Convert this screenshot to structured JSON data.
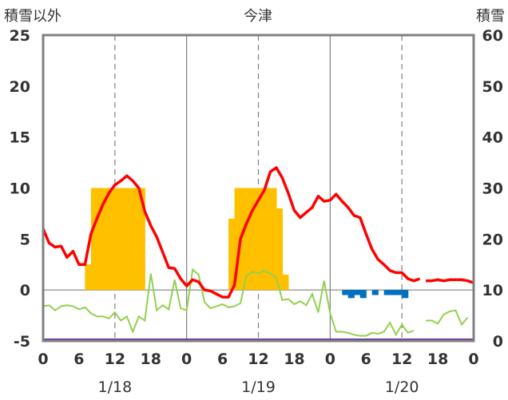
{
  "chart_data": {
    "type": "bar+line",
    "title": "今津",
    "left_axis_label": "積雪以外",
    "right_axis_label": "積雪",
    "y_left": {
      "range": [
        -5,
        25
      ],
      "ticks": [
        "-5",
        "0",
        "5",
        "10",
        "15",
        "20",
        "25"
      ]
    },
    "y_right": {
      "range": [
        0,
        60
      ],
      "ticks": [
        "0",
        "10",
        "20",
        "30",
        "40",
        "50",
        "60"
      ]
    },
    "x_range_hours": [
      0,
      72
    ],
    "x_tick_labels": [
      "0",
      "6",
      "12",
      "18",
      "0",
      "6",
      "12",
      "18",
      "0",
      "6",
      "12",
      "18",
      "0"
    ],
    "date_labels": [
      "1/18",
      "1/19",
      "1/20"
    ],
    "grid": {
      "vertical_dashed_at_hours": [
        12,
        36,
        60
      ],
      "vertical_solid_at_hours": [
        24,
        48
      ]
    },
    "colors": {
      "snow_depth": "#FFC000",
      "temperature": "#FF0000",
      "wind": "#92D050",
      "precipitation": "#0070C0",
      "baseline": "#7030A0",
      "axis": "#808080"
    },
    "snow_depth": [
      {
        "h": 7.5,
        "v": 15.0
      },
      {
        "h": 8.5,
        "v": 30.0
      },
      {
        "h": 9.5,
        "v": 30.0
      },
      {
        "h": 10.5,
        "v": 30.0
      },
      {
        "h": 11.5,
        "v": 30.0
      },
      {
        "h": 12.5,
        "v": 30.0
      },
      {
        "h": 13.5,
        "v": 30.0
      },
      {
        "h": 14.5,
        "v": 30.0
      },
      {
        "h": 15.5,
        "v": 30.0
      },
      {
        "h": 16.5,
        "v": 30.0
      },
      {
        "h": 31.5,
        "v": 24.0
      },
      {
        "h": 32.5,
        "v": 30.0
      },
      {
        "h": 33.5,
        "v": 30.0
      },
      {
        "h": 34.5,
        "v": 30.0
      },
      {
        "h": 35.5,
        "v": 30.0
      },
      {
        "h": 36.5,
        "v": 30.0
      },
      {
        "h": 37.5,
        "v": 30.0
      },
      {
        "h": 38.5,
        "v": 30.0
      },
      {
        "h": 39.5,
        "v": 26.0
      },
      {
        "h": 40.5,
        "v": 13.0
      }
    ],
    "precipitation": [
      {
        "h": 50.5,
        "v": -0.5
      },
      {
        "h": 51.5,
        "v": -0.8
      },
      {
        "h": 52.5,
        "v": -0.5
      },
      {
        "h": 53.5,
        "v": -0.8
      },
      {
        "h": 55.5,
        "v": -0.5
      },
      {
        "h": 57.5,
        "v": -0.5
      },
      {
        "h": 58.5,
        "v": -0.5
      },
      {
        "h": 59.5,
        "v": -0.5
      },
      {
        "h": 60.5,
        "v": -0.8
      }
    ],
    "temperature": [
      [
        {
          "h": 0,
          "v": 6.0
        },
        {
          "h": 1,
          "v": 4.6
        },
        {
          "h": 2,
          "v": 4.2
        },
        {
          "h": 3,
          "v": 4.3
        },
        {
          "h": 4,
          "v": 3.2
        },
        {
          "h": 5,
          "v": 3.8
        },
        {
          "h": 6,
          "v": 2.5
        },
        {
          "h": 7,
          "v": 2.5
        },
        {
          "h": 8,
          "v": 5.5
        },
        {
          "h": 9,
          "v": 7.0
        },
        {
          "h": 10,
          "v": 8.4
        },
        {
          "h": 11,
          "v": 9.5
        },
        {
          "h": 12,
          "v": 10.3
        },
        {
          "h": 13,
          "v": 10.7
        },
        {
          "h": 14,
          "v": 11.2
        },
        {
          "h": 15,
          "v": 10.7
        },
        {
          "h": 16,
          "v": 10.0
        },
        {
          "h": 17,
          "v": 7.7
        },
        {
          "h": 18,
          "v": 6.3
        },
        {
          "h": 19,
          "v": 5.2
        },
        {
          "h": 20,
          "v": 3.7
        },
        {
          "h": 21,
          "v": 2.2
        },
        {
          "h": 22,
          "v": 2.1
        },
        {
          "h": 23,
          "v": 1.1
        },
        {
          "h": 24,
          "v": 0.4
        },
        {
          "h": 25,
          "v": 1.0
        },
        {
          "h": 26,
          "v": 0.8
        },
        {
          "h": 27,
          "v": 0.0
        },
        {
          "h": 28,
          "v": -0.1
        },
        {
          "h": 29,
          "v": -0.4
        },
        {
          "h": 30,
          "v": -0.7
        },
        {
          "h": 31,
          "v": -0.7
        },
        {
          "h": 32,
          "v": 0.5
        },
        {
          "h": 33,
          "v": 5.0
        },
        {
          "h": 34,
          "v": 6.5
        },
        {
          "h": 35,
          "v": 7.8
        },
        {
          "h": 36,
          "v": 8.8
        },
        {
          "h": 37,
          "v": 9.8
        },
        {
          "h": 38,
          "v": 11.6
        },
        {
          "h": 39,
          "v": 12.0
        },
        {
          "h": 40,
          "v": 11.0
        },
        {
          "h": 41,
          "v": 9.5
        },
        {
          "h": 42,
          "v": 7.8
        },
        {
          "h": 43,
          "v": 7.1
        },
        {
          "h": 44,
          "v": 7.6
        },
        {
          "h": 45,
          "v": 8.1
        },
        {
          "h": 46,
          "v": 9.2
        },
        {
          "h": 47,
          "v": 8.7
        },
        {
          "h": 48,
          "v": 8.8
        },
        {
          "h": 49,
          "v": 9.4
        },
        {
          "h": 50,
          "v": 8.7
        },
        {
          "h": 51,
          "v": 8.1
        },
        {
          "h": 52,
          "v": 7.3
        },
        {
          "h": 53,
          "v": 7.1
        },
        {
          "h": 54,
          "v": 5.5
        },
        {
          "h": 55,
          "v": 4.0
        },
        {
          "h": 56,
          "v": 3.0
        },
        {
          "h": 57,
          "v": 2.5
        },
        {
          "h": 58,
          "v": 1.9
        },
        {
          "h": 59,
          "v": 1.7
        },
        {
          "h": 60,
          "v": 1.7
        },
        {
          "h": 61,
          "v": 1.1
        },
        {
          "h": 62,
          "v": 0.9
        },
        {
          "h": 63,
          "v": 1.1
        }
      ],
      [
        {
          "h": 64,
          "v": 0.9
        },
        {
          "h": 65,
          "v": 0.9
        },
        {
          "h": 66,
          "v": 1.0
        },
        {
          "h": 67,
          "v": 0.9
        },
        {
          "h": 68,
          "v": 1.0
        },
        {
          "h": 69,
          "v": 1.0
        },
        {
          "h": 70,
          "v": 1.0
        },
        {
          "h": 71,
          "v": 0.9
        },
        {
          "h": 72,
          "v": 0.7
        }
      ]
    ],
    "wind": [
      [
        {
          "h": 0,
          "v": -1.6
        },
        {
          "h": 1,
          "v": -1.5
        },
        {
          "h": 2,
          "v": -2.0
        },
        {
          "h": 3,
          "v": -1.6
        },
        {
          "h": 4,
          "v": -1.5
        },
        {
          "h": 5,
          "v": -1.6
        },
        {
          "h": 6,
          "v": -1.9
        },
        {
          "h": 7,
          "v": -1.7
        },
        {
          "h": 8,
          "v": -2.3
        },
        {
          "h": 9,
          "v": -2.6
        },
        {
          "h": 10,
          "v": -2.6
        },
        {
          "h": 11,
          "v": -2.8
        },
        {
          "h": 12,
          "v": -2.2
        },
        {
          "h": 13,
          "v": -3.0
        },
        {
          "h": 14,
          "v": -2.6
        },
        {
          "h": 15,
          "v": -4.1
        },
        {
          "h": 16,
          "v": -2.6
        },
        {
          "h": 17,
          "v": -3.0
        },
        {
          "h": 18,
          "v": 1.6
        },
        {
          "h": 19,
          "v": -2.0
        },
        {
          "h": 20,
          "v": -1.5
        },
        {
          "h": 21,
          "v": -1.9
        },
        {
          "h": 22,
          "v": 1.0
        },
        {
          "h": 23,
          "v": -1.8
        },
        {
          "h": 24,
          "v": -2.0
        },
        {
          "h": 25,
          "v": 2.0
        },
        {
          "h": 26,
          "v": 1.5
        },
        {
          "h": 27,
          "v": -1.2
        },
        {
          "h": 28,
          "v": -1.8
        },
        {
          "h": 29,
          "v": -1.6
        },
        {
          "h": 30,
          "v": -1.4
        },
        {
          "h": 31,
          "v": -1.7
        },
        {
          "h": 32,
          "v": -1.6
        },
        {
          "h": 33,
          "v": -1.3
        },
        {
          "h": 34,
          "v": 1.4
        },
        {
          "h": 35,
          "v": 1.8
        },
        {
          "h": 36,
          "v": 1.6
        },
        {
          "h": 37,
          "v": 1.9
        },
        {
          "h": 38,
          "v": 1.6
        },
        {
          "h": 39,
          "v": 1.2
        },
        {
          "h": 40,
          "v": -1.0
        },
        {
          "h": 41,
          "v": -0.9
        },
        {
          "h": 42,
          "v": -1.4
        },
        {
          "h": 43,
          "v": -1.1
        },
        {
          "h": 44,
          "v": -1.5
        },
        {
          "h": 45,
          "v": -0.4
        },
        {
          "h": 46,
          "v": -2.2
        },
        {
          "h": 47,
          "v": 0.9
        },
        {
          "h": 48,
          "v": -2.3
        },
        {
          "h": 49,
          "v": -4.1
        },
        {
          "h": 50,
          "v": -4.1
        },
        {
          "h": 51,
          "v": -4.2
        },
        {
          "h": 52,
          "v": -4.4
        },
        {
          "h": 53,
          "v": -4.5
        },
        {
          "h": 54,
          "v": -4.5
        },
        {
          "h": 55,
          "v": -4.2
        },
        {
          "h": 56,
          "v": -4.3
        },
        {
          "h": 57,
          "v": -4.1
        },
        {
          "h": 58,
          "v": -3.2
        },
        {
          "h": 59,
          "v": -4.4
        },
        {
          "h": 60,
          "v": -3.4
        },
        {
          "h": 61,
          "v": -4.2
        },
        {
          "h": 62,
          "v": -4.0
        }
      ],
      [
        {
          "h": 64,
          "v": -3.0
        },
        {
          "h": 65,
          "v": -3.0
        },
        {
          "h": 66,
          "v": -3.3
        },
        {
          "h": 67,
          "v": -2.4
        },
        {
          "h": 68,
          "v": -2.1
        },
        {
          "h": 69,
          "v": -2.0
        },
        {
          "h": 70,
          "v": -3.4
        },
        {
          "h": 71,
          "v": -2.7
        }
      ]
    ]
  }
}
